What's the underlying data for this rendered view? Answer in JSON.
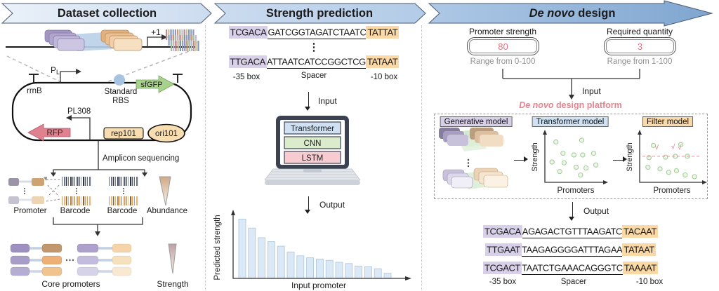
{
  "colors": {
    "purple_highlight": "#d8cfe9",
    "orange_highlight": "#fbd9a6",
    "accent_red": "#e0737f",
    "platform_pink": "#e8838f",
    "sfgfp_green": "#a9d18e",
    "rfp_pink": "#e0818f",
    "bar_fill": "#dbe8f5",
    "scatter_green": "#a4cf9a",
    "banner_blue_light": "#dfeaf6",
    "banner_blue_dark": "#7fa6d0"
  },
  "header": {
    "segments": [
      {
        "label": "Dataset collection"
      },
      {
        "label": "Strength prediction"
      },
      {
        "label_italic": "De novo",
        "label_rest": " design"
      }
    ]
  },
  "panel1": {
    "plus_one": "+1",
    "rrnb": "rrnB",
    "promoter_main": "P",
    "promoter_sub": "L",
    "standard_line1": "Standard",
    "standard_line2": "RBS",
    "sfgfp": "sfGFP",
    "pl308": "PL308",
    "rfp": "RFP",
    "rep101": "rep101",
    "ori101": "ori101",
    "amplicon": "Amplicon sequencing",
    "promoter_label": "Promoter",
    "barcode1": "Barcode",
    "barcode2": "Barcode",
    "abundance": "Abundance",
    "core_promoters": "Core promoters",
    "strength": "Strength",
    "barcode_palette": [
      "#b98d8d",
      "#8ba4be",
      "#9ec09a",
      "#d3ba96",
      "#9c95bf",
      "#c4b8d6",
      "#7e98b4",
      "#c79a72"
    ],
    "barcode_dark": [
      "#3c4354",
      "#596174",
      "#2e3442",
      "#6e7589"
    ],
    "barcode_orange": [
      "#bb813f",
      "#d8a569",
      "#8d612d",
      "#e2b781"
    ]
  },
  "panel2": {
    "sequences": [
      {
        "box35": "TCGACA",
        "spacer": "GATCGGTAGATCTAATC",
        "box10": "TATTAT"
      },
      {
        "box35": "TTGACA",
        "spacer": "ATTAATCATCCGGCTCG",
        "box10": "TATAAT"
      }
    ],
    "vdots": "⋮",
    "labels": {
      "box35": "-35 box",
      "spacer": "Spacer",
      "box10": "-10 box"
    },
    "input_label": "Input",
    "output_label": "Output",
    "models": [
      "Transformer",
      "CNN",
      "LSTM"
    ],
    "chart": {
      "type": "bar",
      "ylabel": "Predicted strength",
      "xlabel": "Input promoter",
      "values": [
        92,
        78,
        63,
        57,
        50,
        41,
        35,
        32,
        30,
        28,
        25,
        23,
        19,
        18,
        15,
        8
      ]
    }
  },
  "panel3": {
    "inputs": [
      {
        "label": "Promoter strength",
        "value": "80",
        "range": "Range from 0-100"
      },
      {
        "label": "Required quantity",
        "value": "3",
        "range": "Range from 1-100"
      }
    ],
    "input_label": "Input",
    "output_label": "Output",
    "platform_italic": "De novo",
    "platform_rest": " design platform",
    "models": {
      "generative": "Generative model",
      "transformer": "Transformer model",
      "filter": "Filter model"
    },
    "scatter_transformer": {
      "ylabel": "Strength",
      "xlabel": "Promoters",
      "points": [
        [
          0.15,
          0.88
        ],
        [
          0.62,
          0.92
        ],
        [
          0.28,
          0.62
        ],
        [
          0.48,
          0.58
        ],
        [
          0.64,
          0.58
        ],
        [
          0.84,
          0.62
        ],
        [
          0.08,
          0.42
        ],
        [
          0.3,
          0.4
        ],
        [
          0.52,
          0.3
        ],
        [
          0.7,
          0.28
        ],
        [
          0.88,
          0.35
        ],
        [
          0.6,
          0.12
        ],
        [
          0.22,
          0.2
        ]
      ]
    },
    "scatter_filter": {
      "ylabel": "Strength",
      "xlabel": "Promoters",
      "threshold": 0.55,
      "points": [
        [
          0.2,
          0.8
        ],
        [
          0.7,
          0.82
        ],
        [
          0.12,
          0.52
        ],
        [
          0.42,
          0.53
        ],
        [
          0.6,
          0.55
        ],
        [
          0.82,
          0.55
        ],
        [
          0.1,
          0.3
        ],
        [
          0.32,
          0.26
        ],
        [
          0.48,
          0.18
        ],
        [
          0.62,
          0.22
        ],
        [
          0.78,
          0.12
        ],
        [
          0.95,
          0.08
        ]
      ],
      "checkmarks": [
        [
          0.26,
          0.7
        ],
        [
          0.56,
          0.72
        ],
        [
          0.68,
          0.7
        ]
      ],
      "check_symbol": "√"
    },
    "sequences": [
      {
        "box35": "TCGACA",
        "spacer": "AGAGACTGTTTAAGATC",
        "box10": "TACAAT"
      },
      {
        "box35": "TTGAAT",
        "spacer": "TAAGAGGGGATTTAGAA",
        "box10": "TATAAT"
      },
      {
        "box35": "TCGACT",
        "spacer": "TAATCTGAAACAGGGTC",
        "box10": "TAAAAT"
      }
    ],
    "labels": {
      "box35": "-35 box",
      "spacer": "Spacer",
      "box10": "-10 box"
    }
  }
}
